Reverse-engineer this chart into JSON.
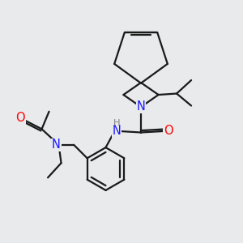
{
  "bg_color": "#e8eaec",
  "atom_colors": {
    "N": "#1a1aff",
    "O": "#ff0000",
    "H": "#808080",
    "C": "#1a1a1a"
  },
  "lw": 1.6,
  "fs": 10.5
}
